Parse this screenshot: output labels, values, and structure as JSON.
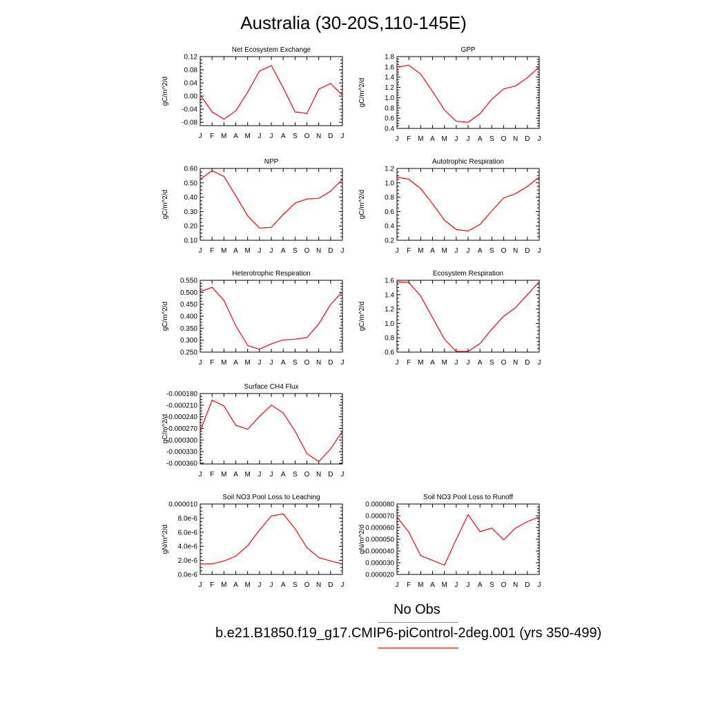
{
  "title": "Australia (30-20S,110-145E)",
  "colors": {
    "model": "#ff0000",
    "obs": "#8080ff",
    "axis": "#000000"
  },
  "legend": {
    "obs_label": "No Obs",
    "model_label": "b.e21.B1850.f19_g17.CMIP6-piControl-2deg.001 (yrs 350-499)"
  },
  "chart_data": [
    {
      "type": "line",
      "title": "Net Ecosystem Exchange",
      "ylabel": "gC/m^2/d",
      "categories": [
        "J",
        "F",
        "M",
        "A",
        "M",
        "J",
        "J",
        "A",
        "S",
        "O",
        "N",
        "D",
        "J"
      ],
      "ylim": [
        -0.09,
        0.12
      ],
      "yticks": [
        "-0.08",
        "-0.04",
        "0.00",
        "0.04",
        "0.08",
        "0.12"
      ],
      "series": [
        {
          "values": [
            0.003,
            -0.048,
            -0.07,
            -0.045,
            0.012,
            0.076,
            0.093,
            0.025,
            -0.048,
            -0.053,
            0.021,
            0.038,
            0.003
          ]
        }
      ]
    },
    {
      "type": "line",
      "title": "GPP",
      "ylabel": "gC/m^2/d",
      "categories": [
        "J",
        "F",
        "M",
        "A",
        "M",
        "J",
        "J",
        "A",
        "S",
        "O",
        "N",
        "D",
        "J"
      ],
      "ylim": [
        0.4,
        1.8
      ],
      "yticks": [
        "0.4",
        "0.6",
        "0.8",
        "1.0",
        "1.2",
        "1.4",
        "1.6",
        "1.8"
      ],
      "series": [
        {
          "values": [
            1.6,
            1.63,
            1.46,
            1.12,
            0.76,
            0.54,
            0.52,
            0.69,
            0.97,
            1.17,
            1.23,
            1.39,
            1.6
          ]
        }
      ]
    },
    {
      "type": "line",
      "title": "NPP",
      "ylabel": "gC/m^2/d",
      "categories": [
        "J",
        "F",
        "M",
        "A",
        "M",
        "J",
        "J",
        "A",
        "S",
        "O",
        "N",
        "D",
        "J"
      ],
      "ylim": [
        0.1,
        0.6
      ],
      "yticks": [
        "0.10",
        "0.20",
        "0.30",
        "0.40",
        "0.50",
        "0.60"
      ],
      "series": [
        {
          "values": [
            0.525,
            0.585,
            0.545,
            0.41,
            0.27,
            0.185,
            0.19,
            0.28,
            0.358,
            0.388,
            0.392,
            0.442,
            0.525
          ]
        }
      ]
    },
    {
      "type": "line",
      "title": "Autotrophic Respiration",
      "ylabel": "gC/m^2/d",
      "categories": [
        "J",
        "F",
        "M",
        "A",
        "M",
        "J",
        "J",
        "A",
        "S",
        "O",
        "N",
        "D",
        "J"
      ],
      "ylim": [
        0.2,
        1.2
      ],
      "yticks": [
        "0.2",
        "0.4",
        "0.6",
        "0.8",
        "1.0",
        "1.2"
      ],
      "series": [
        {
          "values": [
            1.08,
            1.05,
            0.92,
            0.71,
            0.48,
            0.35,
            0.33,
            0.42,
            0.61,
            0.79,
            0.85,
            0.95,
            1.08
          ]
        }
      ]
    },
    {
      "type": "line",
      "title": "Heterotrophic Respiration",
      "ylabel": "gC/m^2/d",
      "categories": [
        "J",
        "F",
        "M",
        "A",
        "M",
        "J",
        "J",
        "A",
        "S",
        "O",
        "N",
        "D",
        "J"
      ],
      "ylim": [
        0.25,
        0.55
      ],
      "yticks": [
        "0.250",
        "0.300",
        "0.350",
        "0.400",
        "0.450",
        "0.500",
        "0.550"
      ],
      "series": [
        {
          "values": [
            0.503,
            0.521,
            0.466,
            0.36,
            0.278,
            0.262,
            0.285,
            0.301,
            0.304,
            0.311,
            0.368,
            0.449,
            0.503
          ]
        }
      ]
    },
    {
      "type": "line",
      "title": "Ecosystem Respiration",
      "ylabel": "gC/m^2/d",
      "categories": [
        "J",
        "F",
        "M",
        "A",
        "M",
        "J",
        "J",
        "A",
        "S",
        "O",
        "N",
        "D",
        "J"
      ],
      "ylim": [
        0.6,
        1.6
      ],
      "yticks": [
        "0.6",
        "0.8",
        "1.0",
        "1.2",
        "1.4",
        "1.6"
      ],
      "series": [
        {
          "values": [
            1.58,
            1.57,
            1.38,
            1.08,
            0.78,
            0.61,
            0.61,
            0.72,
            0.92,
            1.1,
            1.22,
            1.4,
            1.58
          ]
        }
      ]
    },
    {
      "type": "line",
      "title": "Surface CH4 Flux",
      "ylabel": "gC/m^2/d",
      "categories": [
        "J",
        "F",
        "M",
        "A",
        "M",
        "J",
        "J",
        "A",
        "S",
        "O",
        "N",
        "D",
        "J"
      ],
      "ylim": [
        -0.000362,
        -0.00018
      ],
      "yticks": [
        "-0.000360",
        "-0.000330",
        "-0.000300",
        "-0.000270",
        "-0.000240",
        "-0.000210",
        "-0.000180"
      ],
      "series": [
        {
          "values": [
            -0.000277,
            -0.000197,
            -0.000212,
            -0.000262,
            -0.000272,
            -0.000239,
            -0.00021,
            -0.00023,
            -0.000277,
            -0.000335,
            -0.000356,
            -0.000323,
            -0.000277
          ]
        }
      ]
    },
    {
      "type": "line",
      "title": "Soil NO3 Pool Loss to Leaching",
      "ylabel": "gN/m^2/d",
      "categories": [
        "J",
        "F",
        "M",
        "A",
        "M",
        "J",
        "J",
        "A",
        "S",
        "O",
        "N",
        "D",
        "J"
      ],
      "ylim": [
        0,
        1e-05
      ],
      "yticks": [
        "0.0e-6",
        "2.0e-6",
        "4.0e-6",
        "6.0e-6",
        "8.0e-6",
        "0.000010"
      ],
      "series": [
        {
          "values": [
            1.5e-06,
            1.5e-06,
            1.9e-06,
            2.6e-06,
            4.1e-06,
            6.3e-06,
            8.3e-06,
            8.6e-06,
            6.5e-06,
            3.8e-06,
            2.4e-06,
            1.9e-06,
            1.5e-06
          ]
        }
      ]
    },
    {
      "type": "line",
      "title": "Soil NO3 Pool Loss to Runoff",
      "ylabel": "gN/m^2/d",
      "categories": [
        "J",
        "F",
        "M",
        "A",
        "M",
        "J",
        "J",
        "A",
        "S",
        "O",
        "N",
        "D",
        "J"
      ],
      "ylim": [
        2e-05,
        8e-05
      ],
      "yticks": [
        "0.000020",
        "0.000030",
        "0.000040",
        "0.000050",
        "0.000060",
        "0.000070",
        "0.000080"
      ],
      "series": [
        {
          "values": [
            6.9e-05,
            5.6e-05,
            3.6e-05,
            3.2e-05,
            2.8e-05,
            5e-05,
            7.1e-05,
            5.65e-05,
            5.95e-05,
            4.95e-05,
            5.95e-05,
            6.5e-05,
            6.9e-05
          ]
        }
      ]
    }
  ]
}
